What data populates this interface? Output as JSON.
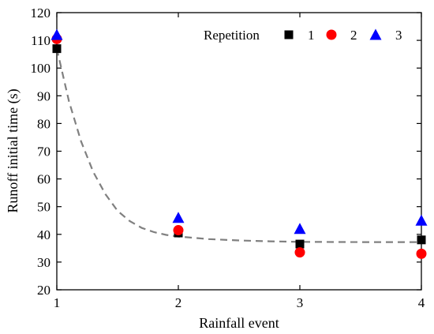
{
  "chart_data": {
    "type": "scatter",
    "xlabel": "Rainfall event",
    "ylabel": "Runoff initial time (s)",
    "xlim": [
      1,
      4
    ],
    "ylim": [
      20,
      120
    ],
    "xticks": [
      1,
      2,
      3,
      4
    ],
    "yticks": [
      20,
      30,
      40,
      50,
      60,
      70,
      80,
      90,
      100,
      110,
      120
    ],
    "legend": {
      "title": "Repetition",
      "placement": "top-right"
    },
    "series": [
      {
        "name": "1",
        "marker": "square",
        "color": "#000000",
        "x": [
          1,
          2,
          3,
          4
        ],
        "y": [
          107,
          40.5,
          36.5,
          38
        ]
      },
      {
        "name": "2",
        "marker": "circle",
        "color": "#ff0000",
        "x": [
          1,
          2,
          3,
          4
        ],
        "y": [
          110.5,
          41.5,
          33.5,
          33
        ]
      },
      {
        "name": "3",
        "marker": "triangle",
        "color": "#0000ff",
        "x": [
          1,
          2,
          3,
          4
        ],
        "y": [
          112,
          46,
          42,
          45
        ]
      }
    ],
    "fit": {
      "style": "dashed",
      "color": "#808080",
      "x": [
        1.0,
        1.1,
        1.2,
        1.3,
        1.4,
        1.5,
        1.6,
        1.7,
        1.8,
        1.9,
        2.0,
        2.25,
        2.5,
        2.75,
        3.0,
        3.5,
        4.0
      ],
      "y": [
        107,
        88,
        73.5,
        62.5,
        54.5,
        48.5,
        44.8,
        42.3,
        40.8,
        39.8,
        39.2,
        38.3,
        37.8,
        37.5,
        37.3,
        37.2,
        37.2
      ]
    },
    "grid": false
  }
}
